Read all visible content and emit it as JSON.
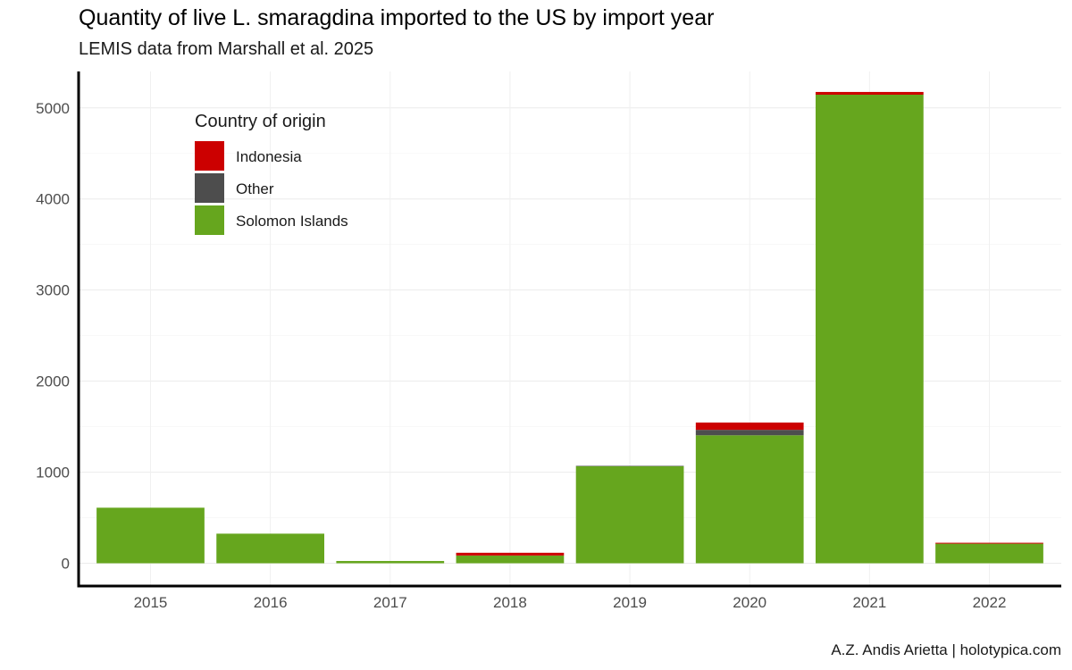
{
  "title": "Quantity of live L. smaragdina imported to the US by import year",
  "subtitle": "LEMIS data from Marshall et al. 2025",
  "caption": "A.Z. Andis Arietta | holotypica.com",
  "chart_data": {
    "type": "bar",
    "stacked": true,
    "categories": [
      "2015",
      "2016",
      "2017",
      "2018",
      "2019",
      "2020",
      "2021",
      "2022"
    ],
    "series": [
      {
        "name": "Solomon Islands",
        "color": "#66a61e",
        "values": [
          610,
          325,
          25,
          85,
          1065,
          1405,
          5145,
          215
        ]
      },
      {
        "name": "Other",
        "color": "#4d4d4d",
        "values": [
          0,
          0,
          0,
          0,
          5,
          60,
          0,
          0
        ]
      },
      {
        "name": "Indonesia",
        "color": "#cc0000",
        "values": [
          0,
          0,
          0,
          30,
          0,
          80,
          30,
          10
        ]
      }
    ],
    "legend_order": [
      "Indonesia",
      "Other",
      "Solomon Islands"
    ],
    "legend_title": "Country of origin",
    "legend_position": "top-left inside",
    "xlabel": "",
    "ylabel": "",
    "ylim": [
      -250,
      5400
    ],
    "yticks": [
      0,
      1000,
      2000,
      3000,
      4000,
      5000
    ],
    "grid": true
  }
}
